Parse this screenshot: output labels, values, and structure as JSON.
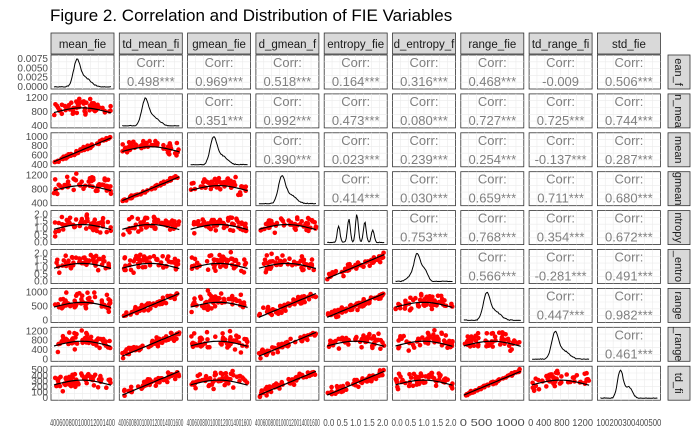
{
  "title": "Figure 2. Correlation and Distribution of FIE Variables",
  "colors": {
    "strip_bg": "#d9d9d9",
    "panel_border": "#333333",
    "grid": "#ebebeb",
    "corr_text": "#7f7f7f",
    "points": "#ff0000",
    "line": "#000000"
  },
  "chart_data": {
    "type": "scatter",
    "layout": "pairs-matrix",
    "title": "Figure 2. Correlation and Distribution of FIE Variables",
    "variables": [
      "mean_fie",
      "sd_mean_fie",
      "gmean_fie",
      "sd_gmean_fie",
      "entropy_fie",
      "sd_entropy_fie",
      "range_fie",
      "sd_range_fie",
      "std_fie"
    ],
    "top_strip_labels": [
      "mean_fie",
      "td_mean_fi",
      "gmean_fie",
      "d_gmean_f",
      "entropy_fie",
      "d_entropy_f",
      "range_fie",
      "td_range_fi",
      "std_fie"
    ],
    "right_strip_labels": [
      "ean_f",
      "n_mea",
      "mean",
      "gmean",
      "ntropy",
      "_entro",
      "range",
      "_range",
      "td_fi"
    ],
    "corr_label": "Corr:",
    "correlations": [
      {
        "row": 0,
        "col": 1,
        "text": "0.498***"
      },
      {
        "row": 0,
        "col": 2,
        "text": "0.969***"
      },
      {
        "row": 0,
        "col": 3,
        "text": "0.518***"
      },
      {
        "row": 0,
        "col": 4,
        "text": "0.164***"
      },
      {
        "row": 0,
        "col": 5,
        "text": "0.316***"
      },
      {
        "row": 0,
        "col": 6,
        "text": "0.468***"
      },
      {
        "row": 0,
        "col": 7,
        "text": "-0.009"
      },
      {
        "row": 0,
        "col": 8,
        "text": "0.506***"
      },
      {
        "row": 1,
        "col": 2,
        "text": "0.351***"
      },
      {
        "row": 1,
        "col": 3,
        "text": "0.992***"
      },
      {
        "row": 1,
        "col": 4,
        "text": "0.473***"
      },
      {
        "row": 1,
        "col": 5,
        "text": "0.080***"
      },
      {
        "row": 1,
        "col": 6,
        "text": "0.727***"
      },
      {
        "row": 1,
        "col": 7,
        "text": "0.725***"
      },
      {
        "row": 1,
        "col": 8,
        "text": "0.744***"
      },
      {
        "row": 2,
        "col": 3,
        "text": "0.390***"
      },
      {
        "row": 2,
        "col": 4,
        "text": "0.023***"
      },
      {
        "row": 2,
        "col": 5,
        "text": "0.239***"
      },
      {
        "row": 2,
        "col": 6,
        "text": "0.254***"
      },
      {
        "row": 2,
        "col": 7,
        "text": "-0.137***"
      },
      {
        "row": 2,
        "col": 8,
        "text": "0.287***"
      },
      {
        "row": 3,
        "col": 4,
        "text": "0.414***"
      },
      {
        "row": 3,
        "col": 5,
        "text": "0.030***"
      },
      {
        "row": 3,
        "col": 6,
        "text": "0.659***"
      },
      {
        "row": 3,
        "col": 7,
        "text": "0.711***"
      },
      {
        "row": 3,
        "col": 8,
        "text": "0.680***"
      },
      {
        "row": 4,
        "col": 5,
        "text": "0.753***"
      },
      {
        "row": 4,
        "col": 6,
        "text": "0.768***"
      },
      {
        "row": 4,
        "col": 7,
        "text": "0.354***"
      },
      {
        "row": 4,
        "col": 8,
        "text": "0.672***"
      },
      {
        "row": 5,
        "col": 6,
        "text": "0.566***"
      },
      {
        "row": 5,
        "col": 7,
        "text": "-0.281***"
      },
      {
        "row": 5,
        "col": 8,
        "text": "0.491***"
      },
      {
        "row": 6,
        "col": 7,
        "text": "0.447***"
      },
      {
        "row": 6,
        "col": 8,
        "text": "0.982***"
      },
      {
        "row": 7,
        "col": 8,
        "text": "0.461***"
      }
    ],
    "y_ticks": [
      [
        "0.0075",
        "0.0050",
        "0.0025",
        "0.0000"
      ],
      [
        "1200",
        "800",
        "400"
      ],
      [
        "1000",
        "800",
        "600",
        "400"
      ],
      [
        "1200",
        "800",
        "400"
      ],
      [
        "2.0",
        "1.5",
        "1.0",
        "0.5",
        "0.0"
      ],
      [
        "2.0",
        "1.5",
        "1.0",
        "0.5",
        "0.0"
      ],
      [
        "1000",
        "500",
        "0"
      ],
      [
        "1200",
        "800",
        "400",
        "0"
      ],
      [
        "500",
        "400",
        "300",
        "200",
        "100",
        "0"
      ]
    ],
    "x_ticks": [
      "400600800100012001400",
      "4006008001000120014001600",
      "4006008001000120014001600",
      "4006008001000120014001600",
      "0.0 0.5 1.0 1.5 2.0",
      "0.0 0.5 1.0 1.5 2.0",
      "0 500 1000",
      "0 400 800 1200",
      "100200300400500"
    ]
  }
}
